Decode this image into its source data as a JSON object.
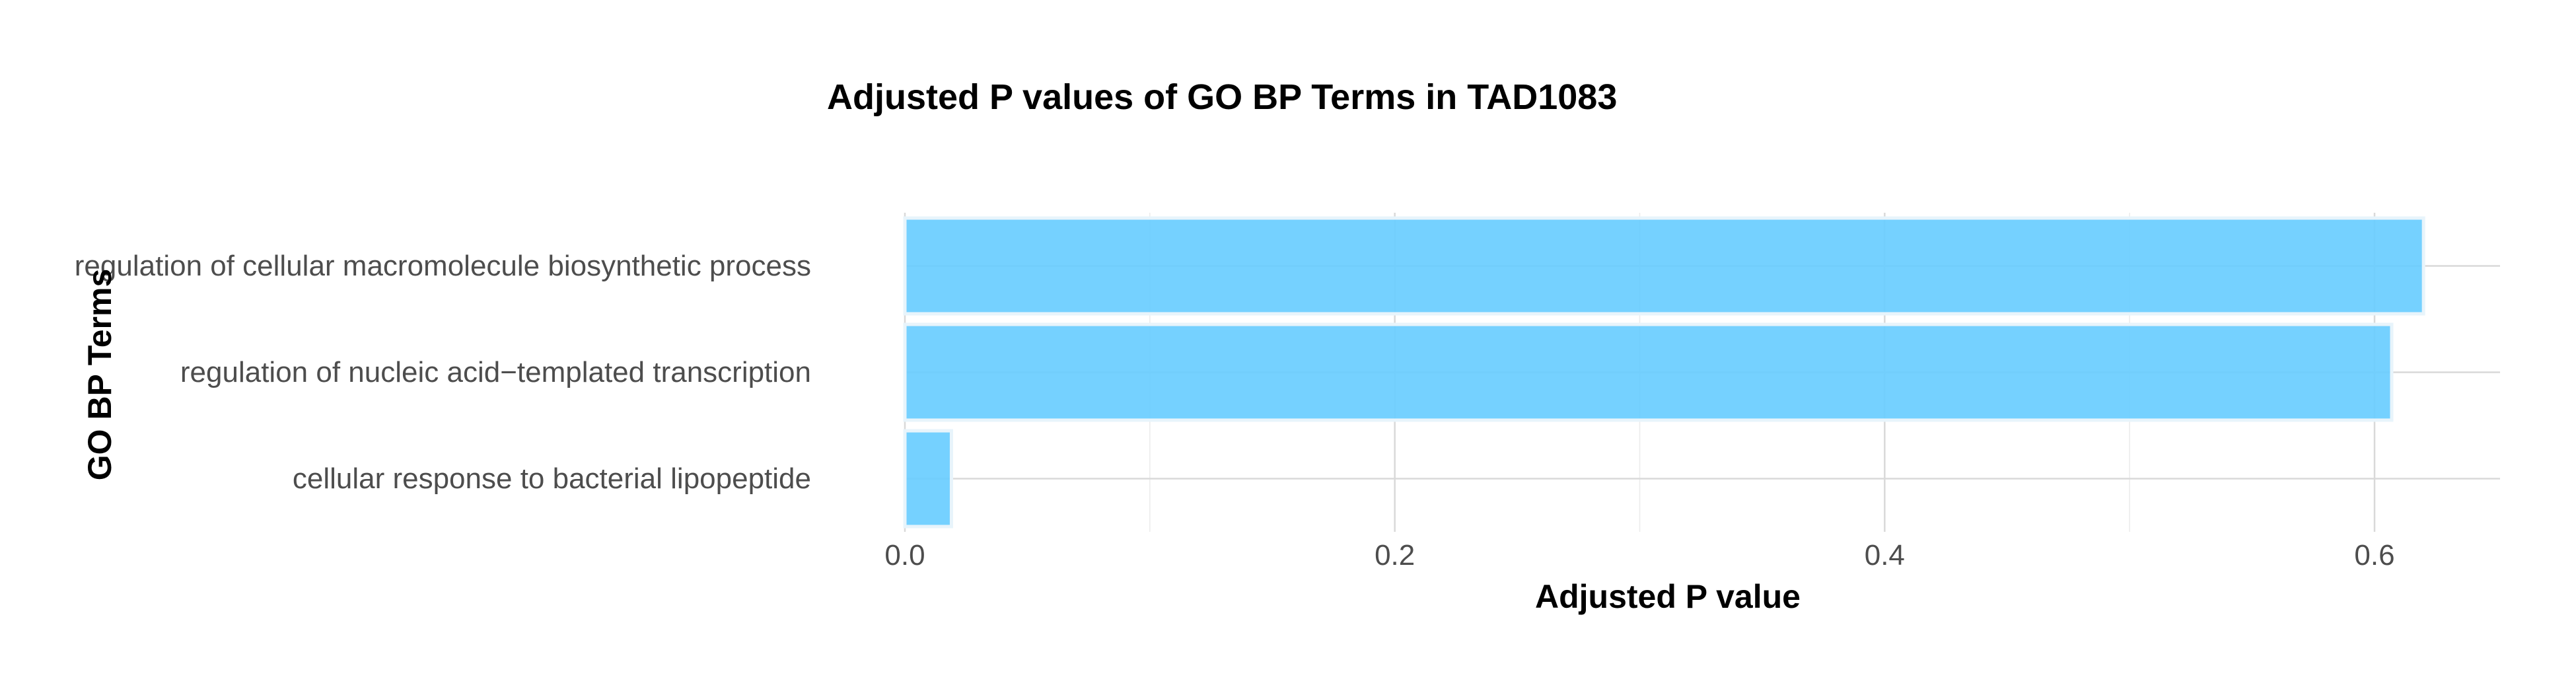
{
  "chart_data": {
    "type": "bar",
    "orientation": "horizontal",
    "title": "Adjusted P values of GO BP Terms in TAD1083",
    "xlabel": "Adjusted P value",
    "ylabel": "GO BP Terms",
    "categories": [
      "regulation of cellular macromolecule biosynthetic process",
      "regulation of nucleic acid−templated transcription",
      "cellular response to bacterial lipopeptide"
    ],
    "values": [
      0.62,
      0.607,
      0.019
    ],
    "xlim": [
      0,
      0.65
    ],
    "xticks": [
      0.0,
      0.2,
      0.4,
      0.6
    ],
    "xtick_labels": [
      "0.0",
      "0.2",
      "0.4",
      "0.6"
    ],
    "grid": true,
    "legend": "none",
    "bar_color": "#66CCFF"
  }
}
